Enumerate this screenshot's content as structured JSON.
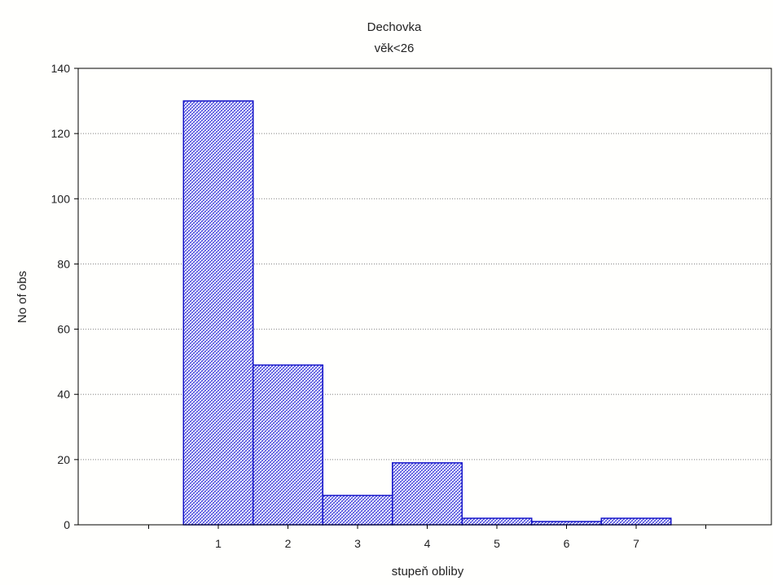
{
  "chart_data": {
    "type": "bar",
    "title": "Dechovka",
    "subtitle": "věk<26",
    "xlabel": "stupeň obliby",
    "ylabel": "No of obs",
    "categories": [
      "1",
      "2",
      "3",
      "4",
      "5",
      "6",
      "7"
    ],
    "values": [
      130,
      49,
      9,
      19,
      2,
      1,
      2
    ],
    "ylim": [
      0,
      140
    ],
    "yticks": [
      "0",
      "20",
      "40",
      "60",
      "80",
      "100",
      "120",
      "140"
    ],
    "grid": true,
    "bar_fill": "#2a2ad8",
    "bar_stroke": "#1414c8",
    "grid_color": "#808080"
  }
}
